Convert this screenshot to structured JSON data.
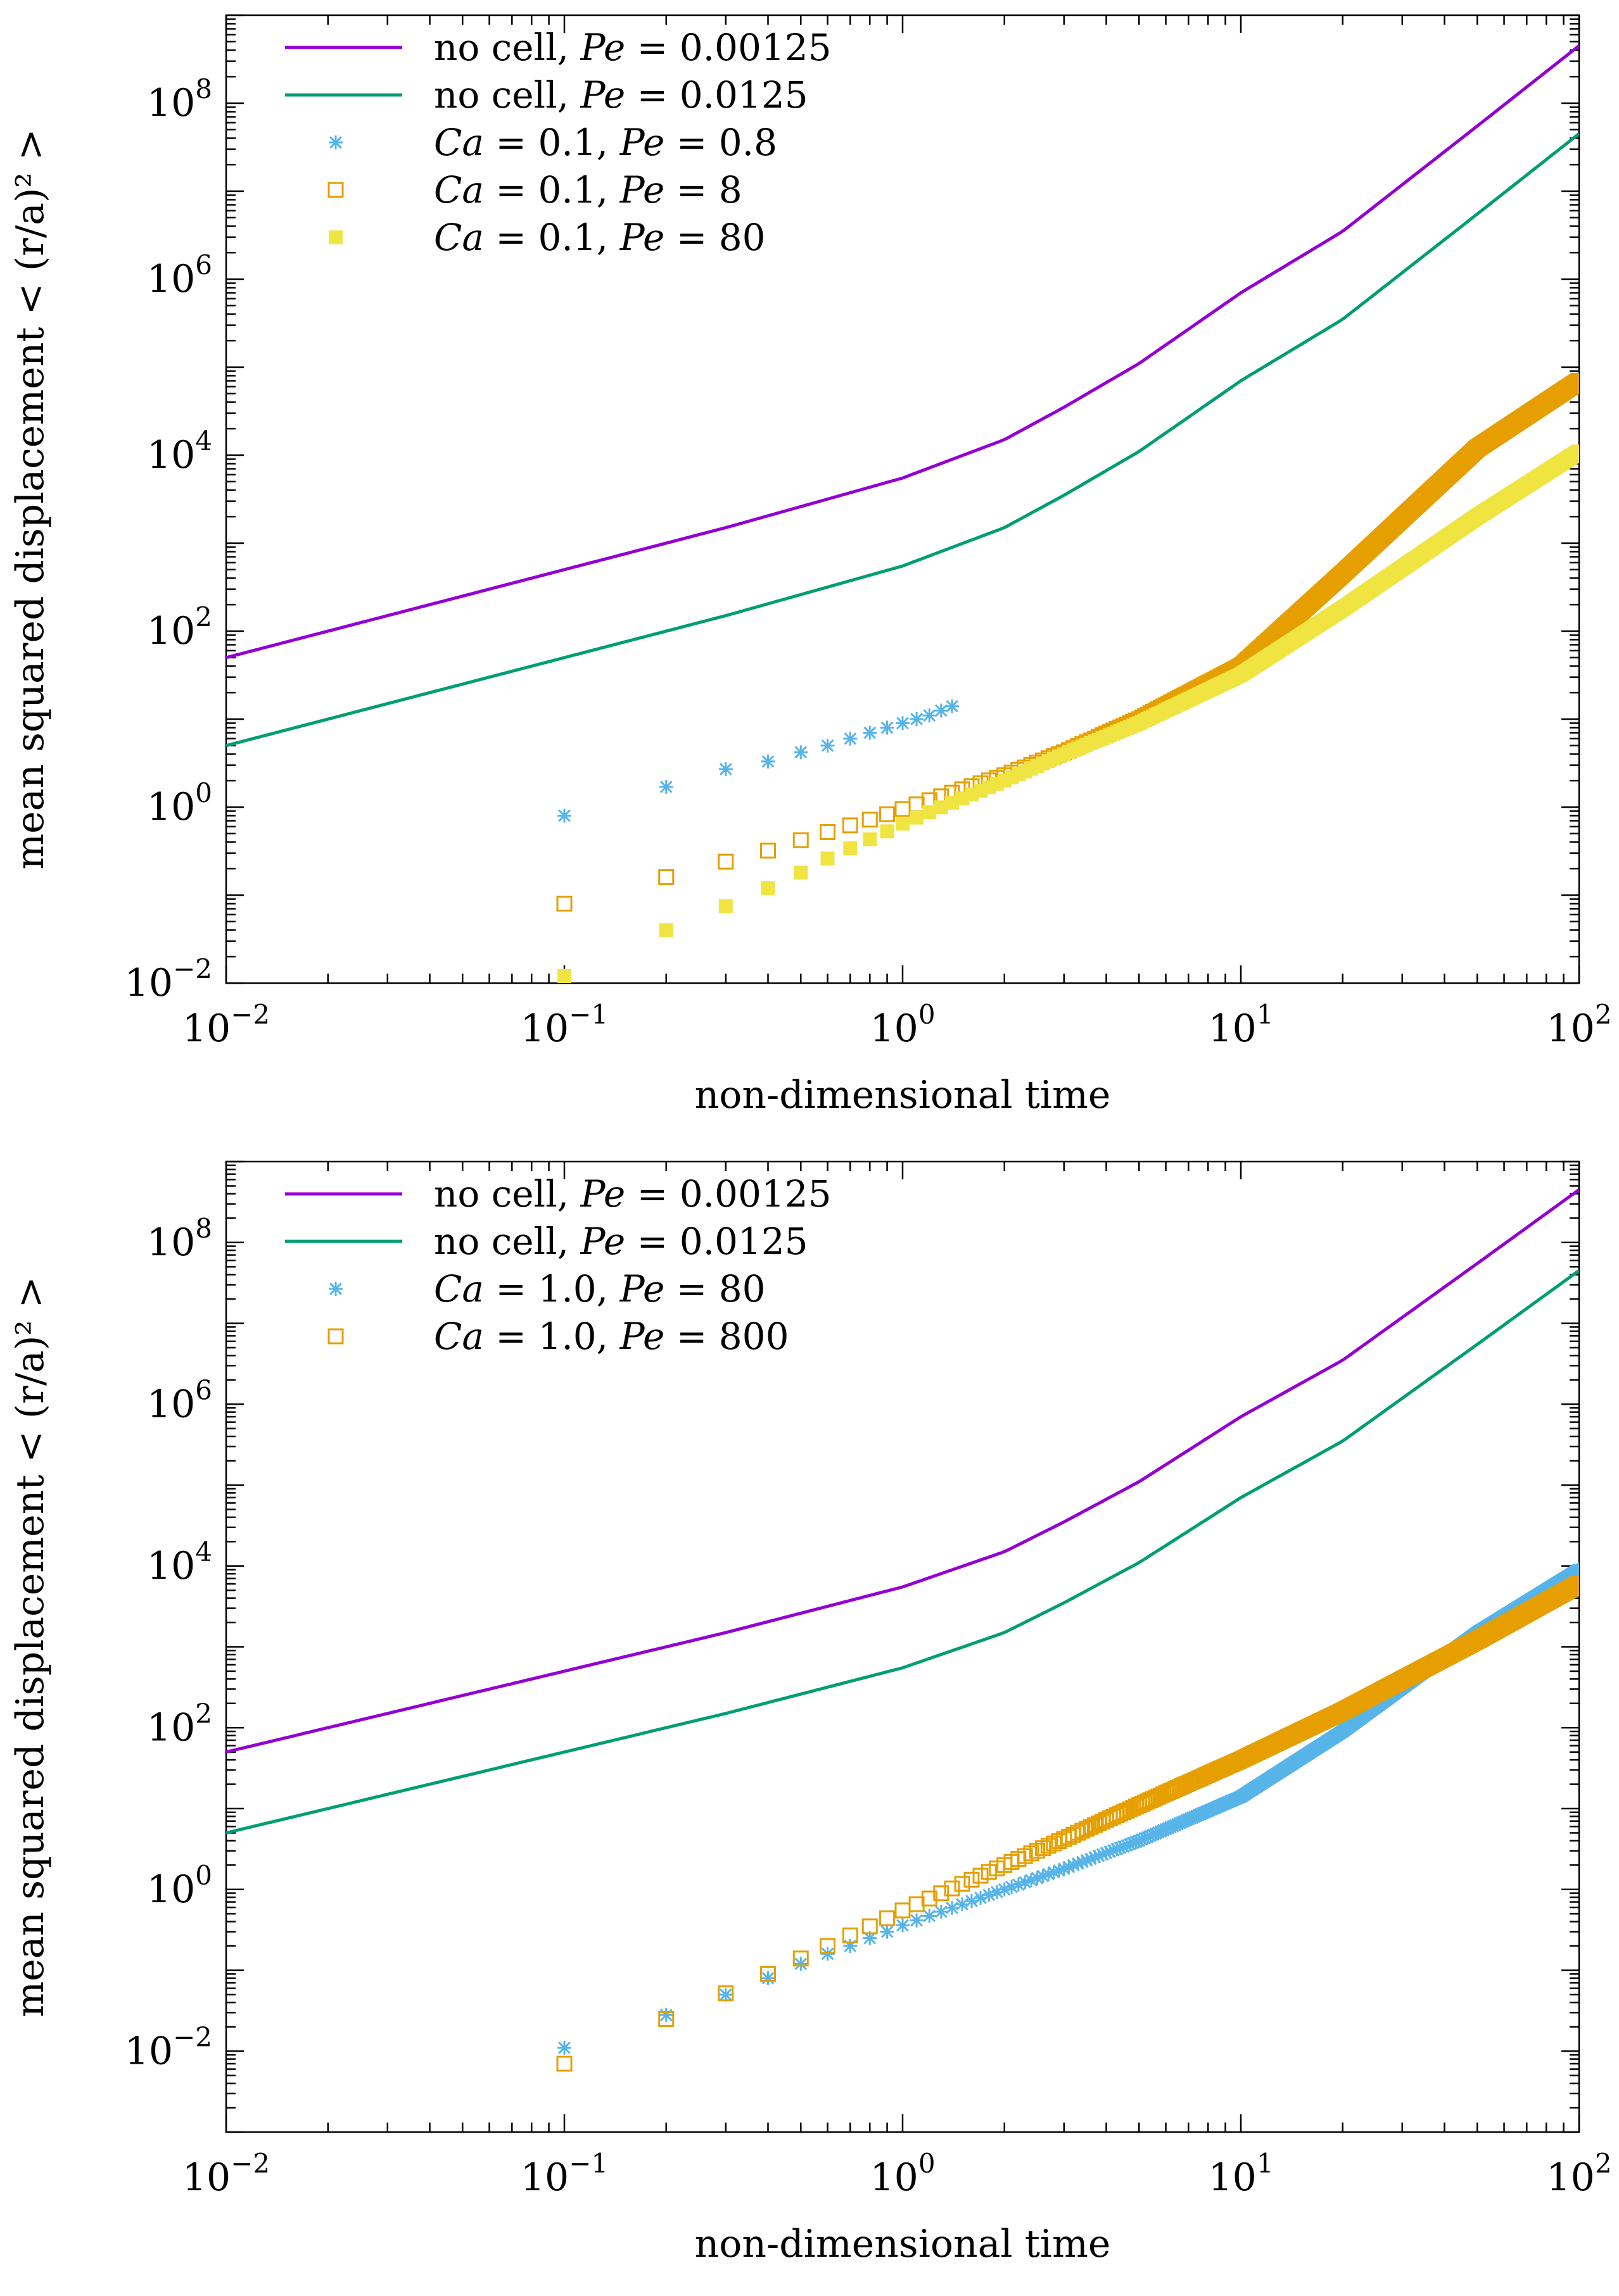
{
  "chart_data": [
    {
      "type": "scatter",
      "xscale": "log",
      "yscale": "log",
      "xlabel": "non-dimensional time",
      "ylabel": "mean squared displacement < (r/a)² >",
      "xlim": [
        0.01,
        100
      ],
      "ylim": [
        0.01,
        1000000000
      ],
      "x_ticks": [
        {
          "base": "10",
          "exp": "−2"
        },
        {
          "base": "10",
          "exp": "−1"
        },
        {
          "base": "10",
          "exp": "0"
        },
        {
          "base": "10",
          "exp": "1"
        },
        {
          "base": "10",
          "exp": "2"
        }
      ],
      "y_ticks": [
        {
          "base": "10",
          "exp": "−2"
        },
        {
          "base": "10",
          "exp": "0"
        },
        {
          "base": "10",
          "exp": "2"
        },
        {
          "base": "10",
          "exp": "4"
        },
        {
          "base": "10",
          "exp": "6"
        },
        {
          "base": "10",
          "exp": "8"
        }
      ],
      "legend_position": "top-left",
      "series": [
        {
          "name": "no cell, Pe = 0.00125",
          "label_text": "no cell, ",
          "label_math": "Pe = 0.00125",
          "kind": "line",
          "color": "#9400D3",
          "x": [
            0.01,
            0.03,
            0.1,
            0.3,
            1,
            2,
            3,
            5,
            10,
            20,
            50,
            100
          ],
          "y": [
            50,
            150,
            500,
            1500,
            5500,
            15000,
            35000,
            110000,
            700000,
            3500000,
            55000000,
            450000000
          ]
        },
        {
          "name": "no cell, Pe = 0.0125",
          "label_text": "no cell, ",
          "label_math": "Pe = 0.0125",
          "kind": "line",
          "color": "#009E73",
          "x": [
            0.01,
            0.03,
            0.1,
            0.3,
            1,
            2,
            3,
            5,
            10,
            20,
            50,
            100
          ],
          "y": [
            5,
            15,
            50,
            150,
            550,
            1500,
            3500,
            11000,
            70000,
            350000,
            5500000,
            45000000
          ]
        },
        {
          "name": "Ca = 0.1, Pe = 0.8",
          "label_text": "",
          "label_math": "Ca = 0.1, Pe = 0.8",
          "kind": "star",
          "color": "#56B4E9",
          "x": [
            0.1,
            0.2,
            0.3,
            0.4,
            0.5,
            0.6,
            0.7,
            0.8,
            0.9,
            1.0,
            1.1,
            1.2,
            1.3,
            1.4
          ],
          "y": [
            0.8,
            1.7,
            2.7,
            3.3,
            4.2,
            5.0,
            6.0,
            7.0,
            8.0,
            9.0,
            10.0,
            11.0,
            12.5,
            14.0
          ]
        },
        {
          "name": "Ca = 0.1, Pe = 8",
          "label_text": "",
          "label_math": "Ca = 0.1, Pe = 8",
          "kind": "open-square",
          "color": "#E69F00",
          "points_at_integers": [
            0.1,
            100
          ],
          "y_at": [
            0.08,
            0.16,
            0.24,
            0.32,
            0.42,
            0.52,
            0.62,
            0.72,
            0.83,
            0.95
          ],
          "curve_x": [
            1,
            2,
            3,
            5,
            10,
            20,
            50,
            100
          ],
          "curve_y": [
            0.95,
            2.3,
            4.2,
            10,
            40,
            450,
            12000,
            70000
          ]
        },
        {
          "name": "Ca = 0.1, Pe = 80",
          "label_text": "",
          "label_math": "Ca = 0.1, Pe = 80",
          "kind": "filled-square",
          "color": "#F0E442",
          "points_at_integers": [
            0.1,
            100
          ],
          "y_at": [
            0.012,
            0.04,
            0.075,
            0.12,
            0.18,
            0.26,
            0.34,
            0.43,
            0.53,
            0.65
          ],
          "curve_x": [
            1,
            2,
            3,
            5,
            10,
            20,
            50,
            100
          ],
          "curve_y": [
            0.65,
            2.0,
            4.0,
            9.0,
            32,
            180,
            2000,
            11000
          ]
        }
      ]
    },
    {
      "type": "scatter",
      "xscale": "log",
      "yscale": "log",
      "xlabel": "non-dimensional time",
      "ylabel": "mean squared displacement < (r/a)² >",
      "xlim": [
        0.01,
        100
      ],
      "ylim": [
        0.001,
        1000000000
      ],
      "x_ticks": [
        {
          "base": "10",
          "exp": "−2"
        },
        {
          "base": "10",
          "exp": "−1"
        },
        {
          "base": "10",
          "exp": "0"
        },
        {
          "base": "10",
          "exp": "1"
        },
        {
          "base": "10",
          "exp": "2"
        }
      ],
      "y_ticks": [
        {
          "base": "10",
          "exp": "−2"
        },
        {
          "base": "10",
          "exp": "0"
        },
        {
          "base": "10",
          "exp": "2"
        },
        {
          "base": "10",
          "exp": "4"
        },
        {
          "base": "10",
          "exp": "6"
        },
        {
          "base": "10",
          "exp": "8"
        }
      ],
      "legend_position": "top-left",
      "series": [
        {
          "name": "no cell, Pe = 0.00125",
          "label_text": "no cell, ",
          "label_math": "Pe = 0.00125",
          "kind": "line",
          "color": "#9400D3",
          "x": [
            0.01,
            0.03,
            0.1,
            0.3,
            1,
            2,
            3,
            5,
            10,
            20,
            50,
            100
          ],
          "y": [
            50,
            150,
            500,
            1500,
            5500,
            15000,
            35000,
            110000,
            700000,
            3500000,
            55000000,
            450000000
          ]
        },
        {
          "name": "no cell, Pe = 0.0125",
          "label_text": "no cell, ",
          "label_math": "Pe = 0.0125",
          "kind": "line",
          "color": "#009E73",
          "x": [
            0.01,
            0.03,
            0.1,
            0.3,
            1,
            2,
            3,
            5,
            10,
            20,
            50,
            100
          ],
          "y": [
            5,
            15,
            50,
            150,
            550,
            1500,
            3500,
            11000,
            70000,
            350000,
            5500000,
            45000000
          ]
        },
        {
          "name": "Ca = 1.0, Pe = 80",
          "label_text": "",
          "label_math": "Ca = 1.0, Pe = 80",
          "kind": "star",
          "color": "#56B4E9",
          "points_at_integers": [
            0.1,
            100
          ],
          "y_at": [
            0.011,
            0.028,
            0.05,
            0.08,
            0.12,
            0.16,
            0.2,
            0.25,
            0.3,
            0.36
          ],
          "curve_x": [
            1,
            2,
            3,
            5,
            10,
            20,
            50,
            100
          ],
          "curve_y": [
            0.36,
            1.0,
            1.8,
            4.0,
            14,
            90,
            1500,
            9000
          ]
        },
        {
          "name": "Ca = 1.0, Pe = 800",
          "label_text": "",
          "label_math": "Ca = 1.0, Pe = 800",
          "kind": "open-square",
          "color": "#E69F00",
          "points_at_integers": [
            0.1,
            100
          ],
          "y_at": [
            0.007,
            0.025,
            0.052,
            0.09,
            0.14,
            0.2,
            0.27,
            0.35,
            0.44,
            0.55
          ],
          "curve_x": [
            1,
            2,
            3,
            5,
            10,
            20,
            50,
            100
          ],
          "curve_y": [
            0.55,
            2.0,
            4.2,
            11,
            40,
            160,
            1200,
            6000
          ]
        }
      ]
    }
  ]
}
